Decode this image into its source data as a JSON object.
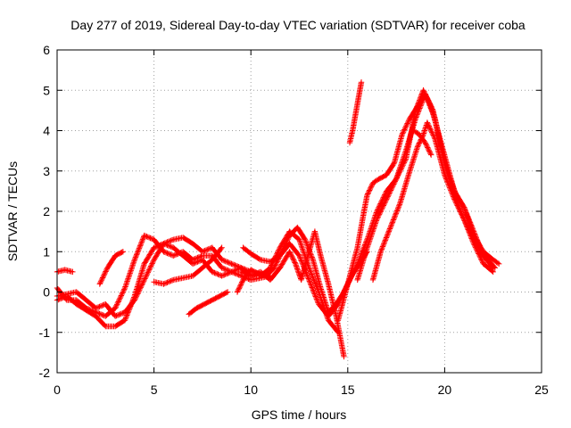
{
  "chart_data": {
    "type": "scatter",
    "title": "Day 277 of 2019, Sidereal Day-to-day VTEC variation (SDTVAR) for receiver coba",
    "xlabel": "GPS time / hours",
    "ylabel": "SDTVAR / TECUs",
    "xlim": [
      0,
      25
    ],
    "ylim": [
      -2,
      6
    ],
    "xticks": [
      0,
      5,
      10,
      15,
      20,
      25
    ],
    "yticks": [
      -2,
      -1,
      0,
      1,
      2,
      3,
      4,
      5,
      6
    ],
    "grid": true,
    "legend": "none",
    "marker": "plus",
    "color": "#ff0000",
    "series": [
      {
        "points": [
          [
            0,
            0.5
          ],
          [
            0.4,
            0.55
          ],
          [
            0.8,
            0.5
          ]
        ]
      },
      {
        "points": [
          [
            0,
            -0.2
          ],
          [
            0.5,
            -0.1
          ],
          [
            1,
            -0.3
          ],
          [
            1.5,
            -0.45
          ],
          [
            2,
            -0.6
          ],
          [
            2.5,
            -0.85
          ],
          [
            3,
            -0.85
          ],
          [
            3.5,
            -0.7
          ],
          [
            4,
            -0.1
          ],
          [
            4.5,
            0.7
          ],
          [
            5,
            1.1
          ],
          [
            5.5,
            1.2
          ],
          [
            6,
            1.1
          ],
          [
            6.5,
            0.9
          ],
          [
            7,
            0.7
          ],
          [
            7.5,
            0.8
          ],
          [
            8,
            0.5
          ],
          [
            8.5,
            0.4
          ],
          [
            9,
            0.5
          ],
          [
            9.5,
            0.6
          ],
          [
            10,
            0.5
          ]
        ]
      },
      {
        "points": [
          [
            0,
            0.1
          ],
          [
            0.5,
            -0.2
          ],
          [
            1,
            -0.2
          ],
          [
            1.5,
            -0.4
          ],
          [
            2,
            -0.5
          ],
          [
            2.5,
            -0.6
          ],
          [
            3,
            -0.4
          ],
          [
            3.5,
            0.1
          ],
          [
            4,
            0.8
          ],
          [
            4.5,
            1.4
          ],
          [
            5,
            1.3
          ],
          [
            5.5,
            1.0
          ],
          [
            6,
            0.9
          ],
          [
            6.5,
            1.0
          ],
          [
            7,
            0.8
          ],
          [
            7.5,
            0.9
          ],
          [
            8,
            0.9
          ],
          [
            8.5,
            0.6
          ],
          [
            9,
            0.5
          ],
          [
            9.5,
            0.4
          ],
          [
            10,
            0.3
          ],
          [
            10.5,
            0.35
          ],
          [
            11,
            0.4
          ]
        ]
      },
      {
        "points": [
          [
            0,
            -0.1
          ],
          [
            0.5,
            -0.05
          ],
          [
            1,
            0.0
          ],
          [
            1.5,
            -0.2
          ],
          [
            2,
            -0.4
          ],
          [
            2.5,
            -0.3
          ],
          [
            3,
            -0.6
          ],
          [
            3.5,
            -0.5
          ],
          [
            4,
            -0.2
          ],
          [
            4.5,
            0.3
          ],
          [
            5,
            0.8
          ],
          [
            5.5,
            1.2
          ],
          [
            6,
            1.3
          ],
          [
            6.5,
            1.35
          ],
          [
            7,
            1.2
          ],
          [
            7.5,
            1.0
          ],
          [
            8,
            1.1
          ],
          [
            8.5,
            0.8
          ],
          [
            9,
            0.7
          ],
          [
            9.5,
            0.6
          ],
          [
            10,
            0.4
          ],
          [
            10.5,
            0.4
          ],
          [
            11,
            0.6
          ],
          [
            11.5,
            1.1
          ],
          [
            12,
            1.5
          ],
          [
            12.5,
            1.3
          ],
          [
            13,
            0.6
          ],
          [
            13.5,
            0.0
          ],
          [
            14,
            -0.7
          ],
          [
            14.5,
            -1.0
          ]
        ]
      },
      {
        "points": [
          [
            2.2,
            0.2
          ],
          [
            2.6,
            0.6
          ],
          [
            3,
            0.9
          ],
          [
            3.4,
            1.0
          ]
        ]
      },
      {
        "points": [
          [
            5,
            0.25
          ],
          [
            5.5,
            0.2
          ],
          [
            6,
            0.3
          ],
          [
            6.5,
            0.35
          ],
          [
            7,
            0.4
          ],
          [
            7.5,
            0.6
          ],
          [
            8,
            0.8
          ],
          [
            8.5,
            1.1
          ]
        ]
      },
      {
        "points": [
          [
            6.8,
            -0.55
          ],
          [
            7.2,
            -0.4
          ],
          [
            7.6,
            -0.3
          ],
          [
            8,
            -0.2
          ],
          [
            8.4,
            -0.1
          ],
          [
            8.8,
            0.0
          ]
        ]
      },
      {
        "points": [
          [
            9.3,
            0.0
          ],
          [
            9.6,
            0.3
          ],
          [
            10,
            0.55
          ],
          [
            10.4,
            0.45
          ],
          [
            10.8,
            0.4
          ],
          [
            11.2,
            0.6
          ],
          [
            11.6,
            1.0
          ],
          [
            12,
            1.4
          ],
          [
            12.4,
            1.6
          ],
          [
            12.8,
            1.3
          ],
          [
            13.2,
            0.8
          ],
          [
            13.6,
            0.1
          ],
          [
            14,
            -0.5
          ],
          [
            14.4,
            -0.3
          ],
          [
            14.8,
            0.0
          ],
          [
            15.2,
            0.4
          ],
          [
            15.6,
            0.7
          ],
          [
            16,
            1.0
          ]
        ]
      },
      {
        "points": [
          [
            9.5,
            0.5
          ],
          [
            10,
            0.4
          ],
          [
            10.5,
            0.5
          ],
          [
            11,
            0.3
          ],
          [
            11.5,
            0.6
          ],
          [
            12,
            1.0
          ],
          [
            12.3,
            0.7
          ],
          [
            12.6,
            0.3
          ],
          [
            13,
            1.0
          ],
          [
            13.3,
            1.5
          ],
          [
            13.6,
            0.9
          ],
          [
            14,
            0.2
          ],
          [
            14.4,
            -0.6
          ],
          [
            14.8,
            -1.6
          ]
        ]
      },
      {
        "points": [
          [
            9.6,
            1.1
          ],
          [
            10,
            0.95
          ],
          [
            10.5,
            0.8
          ],
          [
            11,
            0.75
          ],
          [
            11.5,
            0.9
          ],
          [
            12,
            1.2
          ],
          [
            12.5,
            0.9
          ],
          [
            13,
            0.3
          ],
          [
            13.5,
            -0.3
          ],
          [
            14,
            -0.6
          ],
          [
            14.5,
            -0.3
          ],
          [
            15,
            0.2
          ],
          [
            15.5,
            0.7
          ],
          [
            16,
            1.3
          ],
          [
            16.5,
            2.0
          ],
          [
            17,
            2.5
          ],
          [
            17.5,
            2.8
          ],
          [
            18,
            3.5
          ],
          [
            18.5,
            4.3
          ],
          [
            19,
            4.9
          ],
          [
            19.5,
            4.3
          ],
          [
            20,
            3.2
          ],
          [
            20.5,
            2.4
          ],
          [
            21,
            1.8
          ],
          [
            21.5,
            1.2
          ],
          [
            22,
            0.7
          ],
          [
            22.5,
            0.5
          ]
        ]
      },
      {
        "points": [
          [
            14.5,
            -0.7
          ],
          [
            15,
            0.2
          ],
          [
            15.5,
            1.1
          ],
          [
            15.8,
            1.9
          ],
          [
            16,
            2.4
          ],
          [
            16.3,
            2.7
          ],
          [
            16.6,
            2.8
          ],
          [
            17,
            2.9
          ],
          [
            17.4,
            3.2
          ],
          [
            17.8,
            3.9
          ],
          [
            18.2,
            4.3
          ],
          [
            18.6,
            4.6
          ],
          [
            19,
            4.9
          ],
          [
            19.4,
            4.5
          ],
          [
            19.8,
            3.6
          ],
          [
            20.2,
            2.9
          ],
          [
            20.6,
            2.4
          ],
          [
            21,
            2.1
          ],
          [
            21.5,
            1.5
          ],
          [
            22,
            0.9
          ],
          [
            22.6,
            0.6
          ]
        ]
      },
      {
        "points": [
          [
            15.5,
            0.3
          ],
          [
            16,
            1.1
          ],
          [
            16.5,
            1.8
          ],
          [
            17,
            2.3
          ],
          [
            17.5,
            2.8
          ],
          [
            18,
            3.3
          ],
          [
            18.5,
            4.5
          ],
          [
            18.9,
            5.0
          ],
          [
            19.3,
            4.6
          ],
          [
            19.7,
            3.9
          ],
          [
            20.1,
            3.2
          ],
          [
            20.5,
            2.5
          ],
          [
            21,
            2.1
          ],
          [
            21.5,
            1.4
          ],
          [
            22,
            1.0
          ],
          [
            22.5,
            0.8
          ],
          [
            22.8,
            0.7
          ]
        ]
      },
      {
        "points": [
          [
            16.3,
            0.3
          ],
          [
            16.7,
            1.0
          ],
          [
            17.2,
            1.6
          ],
          [
            17.7,
            2.2
          ],
          [
            18.2,
            3.0
          ],
          [
            18.6,
            3.6
          ],
          [
            18.9,
            3.9
          ],
          [
            19.1,
            4.2
          ],
          [
            19.5,
            3.8
          ],
          [
            20,
            2.9
          ],
          [
            20.5,
            2.3
          ],
          [
            21,
            1.8
          ],
          [
            21.5,
            1.3
          ],
          [
            22,
            0.9
          ],
          [
            22.5,
            0.6
          ]
        ]
      },
      {
        "points": [
          [
            18.4,
            4.0
          ],
          [
            18.7,
            3.9
          ],
          [
            19,
            3.7
          ],
          [
            19.3,
            3.4
          ]
        ]
      },
      {
        "points": [
          [
            15.1,
            3.7
          ],
          [
            15.25,
            4.0
          ],
          [
            15.4,
            4.4
          ],
          [
            15.55,
            4.8
          ],
          [
            15.7,
            5.2
          ]
        ]
      }
    ]
  }
}
